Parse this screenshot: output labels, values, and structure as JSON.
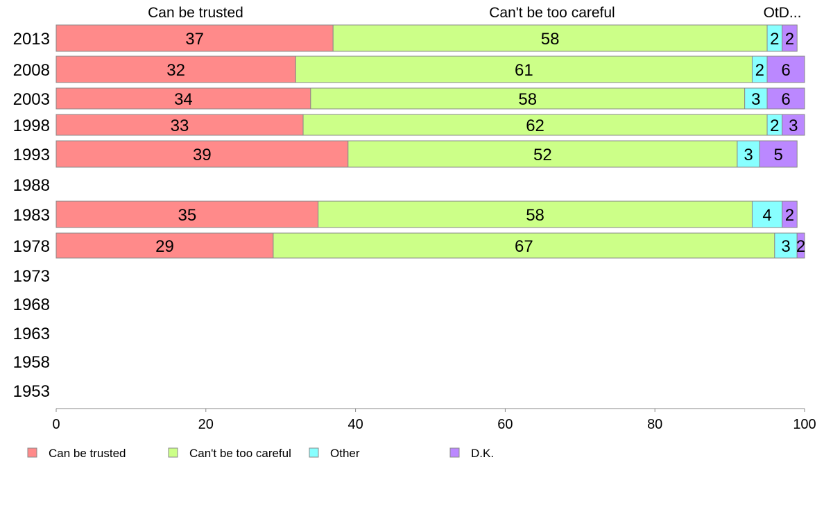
{
  "chart_data": {
    "type": "bar",
    "orientation": "horizontal",
    "stacked": true,
    "categories": [
      "2013",
      "2008",
      "2003",
      "1998",
      "1993",
      "1988",
      "1983",
      "1978",
      "1973",
      "1968",
      "1963",
      "1958",
      "1953"
    ],
    "column_headers": [
      "Can be trusted",
      "Can't be too careful",
      "OtD..."
    ],
    "series": [
      {
        "name": "Can be trusted",
        "color": "#ff8a8a",
        "values": [
          37,
          32,
          34,
          33,
          39,
          null,
          35,
          29,
          null,
          null,
          null,
          null,
          null
        ]
      },
      {
        "name": "Can't be too careful",
        "color": "#ccff88",
        "values": [
          58,
          61,
          58,
          62,
          52,
          null,
          58,
          67,
          null,
          null,
          null,
          null,
          null
        ]
      },
      {
        "name": "Other",
        "color": "#88ffff",
        "values": [
          2,
          2,
          3,
          2,
          3,
          null,
          4,
          3,
          null,
          null,
          null,
          null,
          null
        ]
      },
      {
        "name": "D.K.",
        "color": "#bb88ff",
        "values": [
          2,
          6,
          6,
          3,
          5,
          null,
          2,
          2,
          null,
          null,
          null,
          null,
          null
        ]
      }
    ],
    "xlim": [
      0,
      100
    ],
    "xticks": [
      "0",
      "20",
      "40",
      "60",
      "80",
      "100"
    ],
    "xlabel": "",
    "ylabel": "",
    "legend_position": "bottom-left",
    "grid": false
  }
}
